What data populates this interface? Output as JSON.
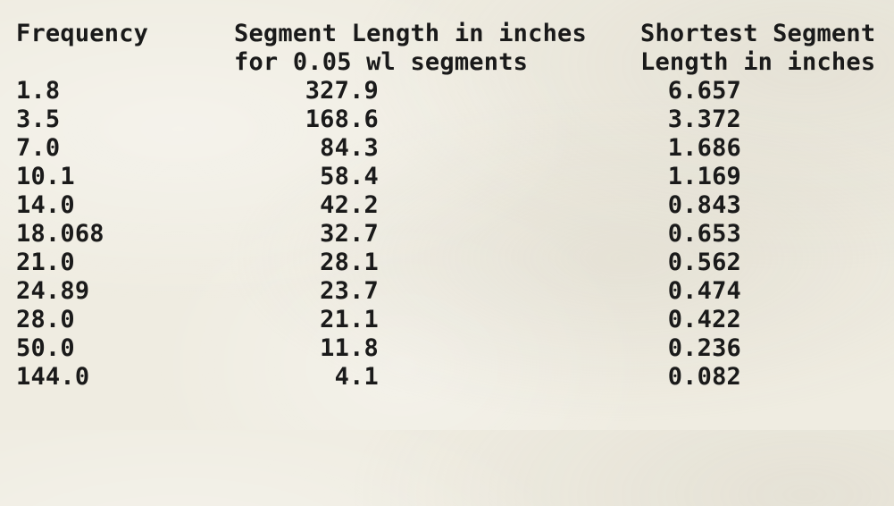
{
  "header": {
    "line1": {
      "frequency": "Frequency",
      "segment": "Segment Length in inches",
      "shortest": "Shortest Segment"
    },
    "line2": {
      "segment": "for 0.05 wl segments",
      "shortest": "Length in inches"
    }
  },
  "rows": [
    {
      "frequency": "1.8",
      "segment": "327.9",
      "shortest": "6.657"
    },
    {
      "frequency": "3.5",
      "segment": "168.6",
      "shortest": "3.372"
    },
    {
      "frequency": "7.0",
      "segment": "84.3",
      "shortest": "1.686"
    },
    {
      "frequency": "10.1",
      "segment": "58.4",
      "shortest": "1.169"
    },
    {
      "frequency": "14.0",
      "segment": "42.2",
      "shortest": "0.843"
    },
    {
      "frequency": "18.068",
      "segment": "32.7",
      "shortest": "0.653"
    },
    {
      "frequency": "21.0",
      "segment": "28.1",
      "shortest": "0.562"
    },
    {
      "frequency": "24.89",
      "segment": "23.7",
      "shortest": "0.474"
    },
    {
      "frequency": "28.0",
      "segment": "21.1",
      "shortest": "0.422"
    },
    {
      "frequency": "50.0",
      "segment": "11.8",
      "shortest": "0.236"
    },
    {
      "frequency": "144.0",
      "segment": "4.1",
      "shortest": "0.082"
    }
  ]
}
